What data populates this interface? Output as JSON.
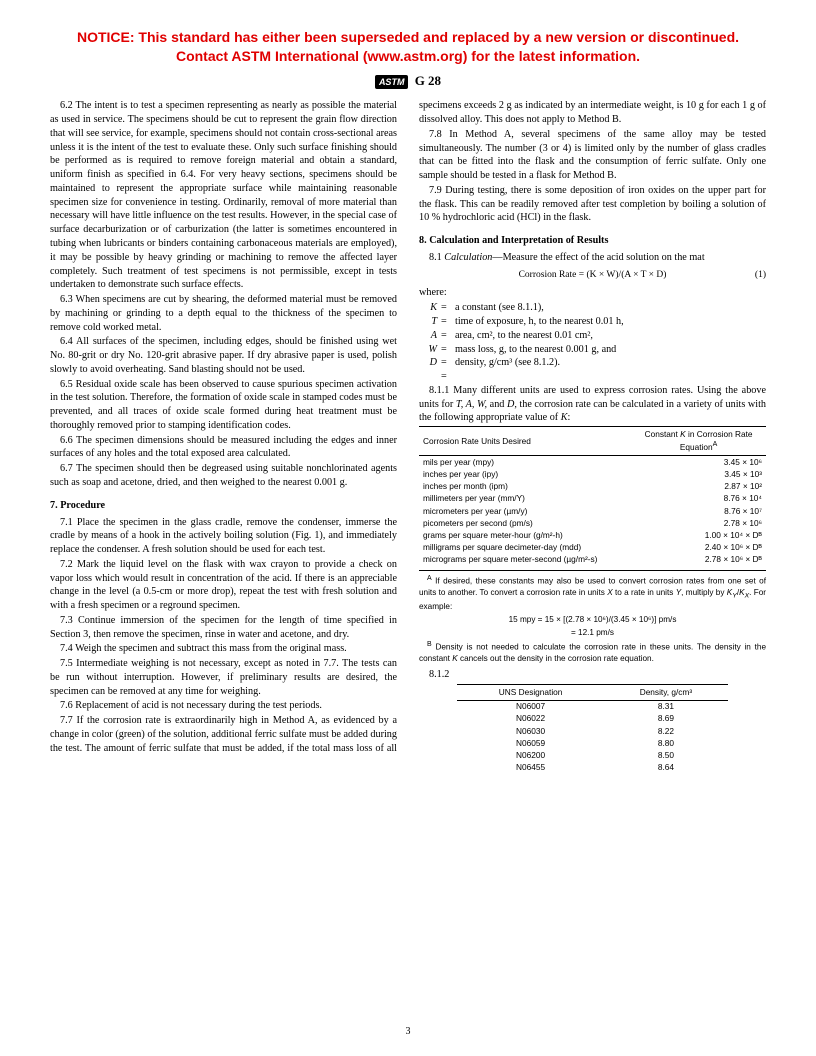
{
  "notice": {
    "line1": "NOTICE: This standard has either been superseded and replaced by a new version or discontinued.",
    "line2": "Contact ASTM International (www.astm.org) for the latest information."
  },
  "doc_id": "G 28",
  "logo_text": "ASTM",
  "page_number": "3",
  "colors": {
    "notice": "#e00000",
    "text": "#000000",
    "background": "#ffffff"
  },
  "paragraphs": {
    "p62": "6.2 The intent is to test a specimen representing as nearly as possible the material as used in service. The specimens should be cut to represent the grain flow direction that will see service, for example, specimens should not contain cross-sectional areas unless it is the intent of the test to evaluate these. Only such surface finishing should be performed as is required to remove foreign material and obtain a standard, uniform finish as specified in 6.4. For very heavy sections, specimens should be maintained to represent the appropriate surface while maintaining reasonable specimen size for convenience in testing. Ordinarily, removal of more material than necessary will have little influence on the test results. However, in the special case of surface decarburization or of carburization (the latter is sometimes encountered in tubing when lubricants or binders containing carbonaceous materials are employed), it may be possible by heavy grinding or machining to remove the affected layer completely. Such treatment of test specimens is not permissible, except in tests undertaken to demonstrate such surface effects.",
    "p63": "6.3 When specimens are cut by shearing, the deformed material must be removed by machining or grinding to a depth equal to the thickness of the specimen to remove cold worked metal.",
    "p64": "6.4 All surfaces of the specimen, including edges, should be finished using wet No. 80-grit or dry No. 120-grit abrasive paper. If dry abrasive paper is used, polish slowly to avoid overheating. Sand blasting should not be used.",
    "p65": "6.5 Residual oxide scale has been observed to cause spurious specimen activation in the test solution. Therefore, the formation of oxide scale in stamped codes must be prevented, and all traces of oxide scale formed during heat treatment must be thoroughly removed prior to stamping identification codes.",
    "p66": "6.6 The specimen dimensions should be measured including the edges and inner surfaces of any holes and the total exposed area calculated.",
    "p67": "6.7 The specimen should then be degreased using suitable nonchlorinated agents such as soap and acetone, dried, and then weighed to the nearest 0.001 g.",
    "s7": "7. Procedure",
    "p71": "7.1 Place the specimen in the glass cradle, remove the condenser, immerse the cradle by means of a hook in the actively boiling solution (Fig. 1), and immediately replace the condenser. A fresh solution should be used for each test.",
    "p72": "7.2 Mark the liquid level on the flask with wax crayon to provide a check on vapor loss which would result in concentration of the acid. If there is an appreciable change in the level (a 0.5-cm or more drop), repeat the test with fresh solution and with a fresh specimen or a reground specimen.",
    "p73": "7.3 Continue immersion of the specimen for the length of time specified in Section 3, then remove the specimen, rinse in water and acetone, and dry.",
    "p74": "7.4 Weigh the specimen and subtract this mass from the original mass.",
    "p75": "7.5 Intermediate weighing is not necessary, except as noted in 7.7. The tests can be run without interruption. However, if preliminary results are desired, the specimen can be removed at any time for weighing.",
    "p76": "7.6 Replacement of acid is not necessary during the test periods.",
    "p77": "7.7 If the corrosion rate is extraordinarily high in Method A, as evidenced by a change in color (green) of the solution, additional ferric sulfate must be added during the test. The amount of ferric sulfate that must be added, if the total mass loss of all specimens exceeds 2 g as indicated by an intermediate weight, is 10 g for each 1 g of dissolved alloy. This does not apply to Method B.",
    "p78": "7.8 In Method A, several specimens of the same alloy may be tested simultaneously. The number (3 or 4) is limited only by the number of glass cradles that can be fitted into the flask and the consumption of ferric sulfate. Only one sample should be tested in a flask for Method B.",
    "p79": "7.9 During testing, there is some deposition of iron oxides on the upper part for the flask. This can be readily removed after test completion by boiling a solution of 10 % hydrochloric acid (HCl) in the flask.",
    "s8": "8. Calculation and Interpretation of Results",
    "p81_label": "8.1",
    "p81_term": "Calculation",
    "p81_rest": "—Measure the effect of the acid solution on the mat",
    "eq1": "Corrosion Rate = (K × W)/(A × T × D)",
    "eq1_num": "(1)",
    "where": "where:",
    "defs": {
      "K": "a constant (see 8.1.1),",
      "T": "time of exposure, h, to the nearest 0.01 h,",
      "A": "area, cm², to the nearest 0.01 cm²,",
      "W": "mass loss, g, to the nearest 0.001 g, and",
      "D": "density, g/cm³ (see 8.1.2).",
      "eq": "="
    },
    "p811": "8.1.1 Many different units are used to express corrosion rates. Using the above units for T, A, W, and D, the corrosion rate can be calculated in a variety of units with the following appropriate value of K:",
    "tbl1_h1": "Corrosion Rate Units Desired",
    "tbl1_h2": "Constant K in Corrosion Rate Equationᴬ",
    "units_rows": [
      {
        "u": "mils per year (mpy)",
        "k": "3.45 × 10⁶"
      },
      {
        "u": "inches per year (ipy)",
        "k": "3.45 × 10³"
      },
      {
        "u": "inches per month (ipm)",
        "k": "2.87 × 10²"
      },
      {
        "u": "millimeters per year (mm/Y)",
        "k": "8.76 × 10⁴"
      },
      {
        "u": "micrometers per year (µm/y)",
        "k": "8.76 × 10⁷"
      },
      {
        "u": "picometers per second (pm/s)",
        "k": "2.78 × 10⁶"
      },
      {
        "u": "grams per square meter-hour (g/m²-h)",
        "k": "1.00 × 10⁴ × Dᴮ"
      },
      {
        "u": "milligrams per square decimeter-day (mdd)",
        "k": "2.40 × 10⁶ × Dᴮ"
      },
      {
        "u": "micrograms per square meter-second (µg/m²-s)",
        "k": "2.78 × 10⁶ × Dᴮ"
      }
    ],
    "fnA": "ᴬ If desired, these constants may also be used to convert corrosion rates from one set of units to another. To convert a corrosion rate in units X to a rate in units Y, multiply by K_Y/K_X. For example:",
    "fn_eq1": "15 mpy = 15 × [(2.78 × 10⁶)/(3.45 × 10⁶)] pm/s",
    "fn_eq2": "= 12.1 pm/s",
    "fnB": "ᴮ Density is not needed to calculate the corrosion rate in these units. The density in the constant K cancels out the density in the corrosion rate equation.",
    "p812": "8.1.2",
    "tbl2_h1": "UNS Designation",
    "tbl2_h2": "Density, g/cm³",
    "density_rows": [
      {
        "n": "N06007",
        "d": "8.31"
      },
      {
        "n": "N06022",
        "d": "8.69"
      },
      {
        "n": "N06030",
        "d": "8.22"
      },
      {
        "n": "N06059",
        "d": "8.80"
      },
      {
        "n": "N06200",
        "d": "8.50"
      },
      {
        "n": "N06455",
        "d": "8.64"
      }
    ]
  }
}
